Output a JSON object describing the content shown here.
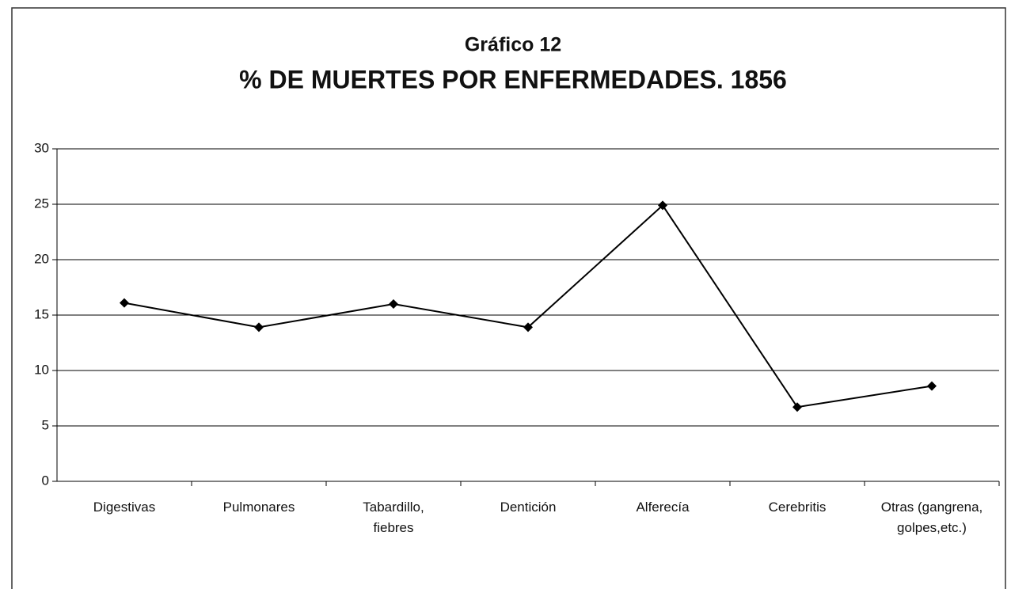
{
  "chart_data": {
    "type": "line",
    "title": "Gráfico 12",
    "subtitle": "% DE MUERTES POR ENFERMEDADES. 1856",
    "categories": [
      "Digestivas",
      "Pulmonares",
      "Tabardillo, fiebres",
      "Dentición",
      "Alferecía",
      "Cerebritis",
      "Otras (gangrena, golpes,etc.)"
    ],
    "series": [
      {
        "name": "% de muertes",
        "color": "#000000",
        "values": [
          16.1,
          13.9,
          16.0,
          13.9,
          24.9,
          6.7,
          8.6
        ]
      }
    ],
    "ylim": [
      0,
      30
    ],
    "yticks": [
      0,
      5,
      10,
      15,
      20,
      25,
      30
    ],
    "grid": true
  }
}
